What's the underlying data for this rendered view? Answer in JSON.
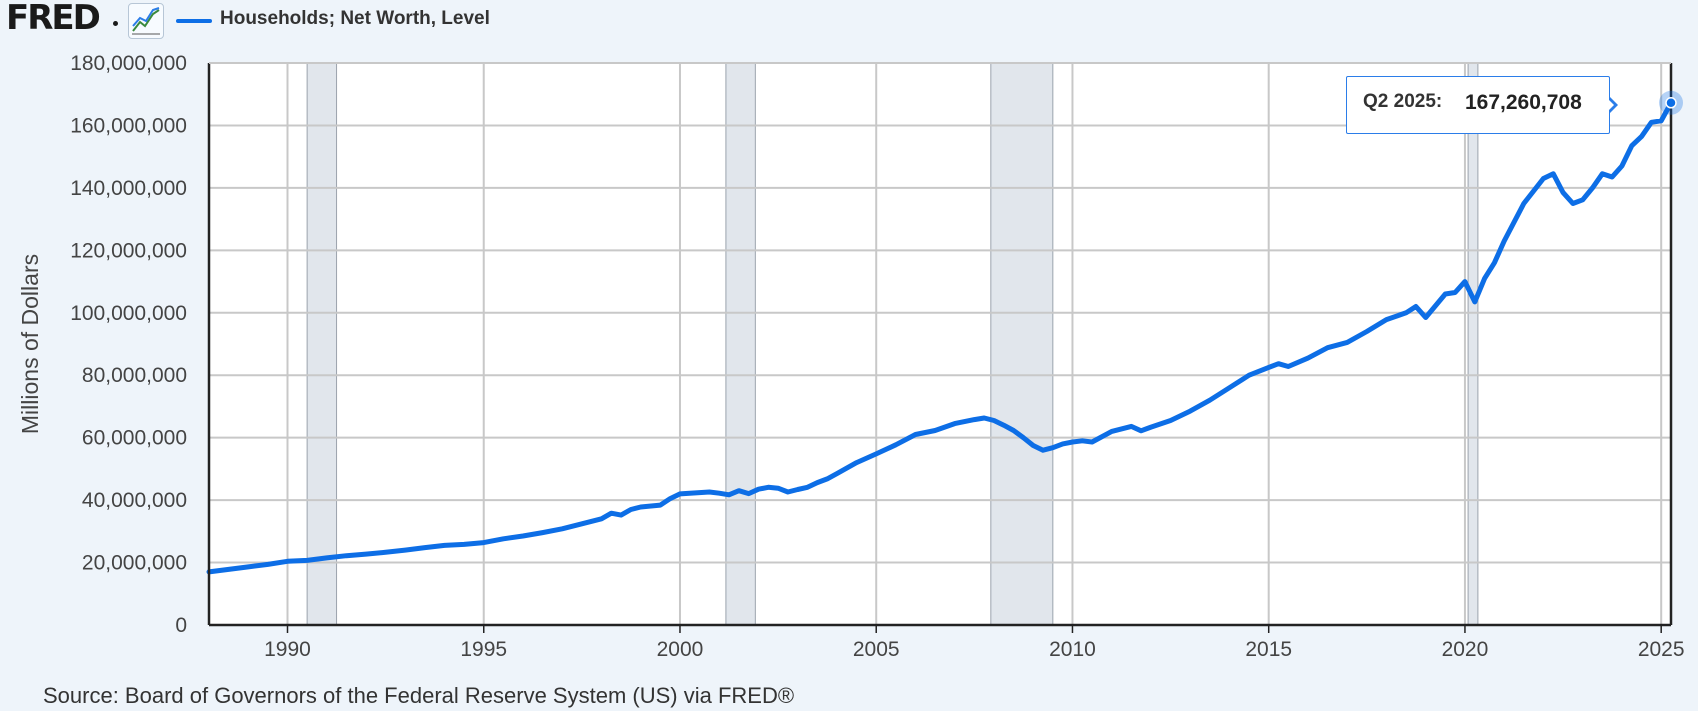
{
  "header": {
    "logo_text": "FRED",
    "chart_icon": "line-chart-icon",
    "series_label": "Households; Net Worth, Level",
    "series_color": "#0d6ee6"
  },
  "tooltip": {
    "date": "Q2 2025:",
    "value": "167,260,708"
  },
  "source": "Source: Board of Governors of the Federal Reserve System (US) via FRED®",
  "chart_data": {
    "type": "line",
    "title": "",
    "xlabel": "",
    "ylabel": "Millions of Dollars",
    "xlim": [
      1988.0,
      2025.25
    ],
    "ylim": [
      0,
      180000000
    ],
    "grid": true,
    "legend": "top-left",
    "x_ticks": [
      1990,
      1995,
      2000,
      2005,
      2010,
      2015,
      2020,
      2025
    ],
    "x_tick_labels": [
      "1990",
      "1995",
      "2000",
      "2005",
      "2010",
      "2015",
      "2020",
      "2025"
    ],
    "y_ticks": [
      0,
      20000000,
      40000000,
      60000000,
      80000000,
      100000000,
      120000000,
      140000000,
      160000000,
      180000000
    ],
    "y_tick_labels": [
      "0",
      "20,000,000",
      "40,000,000",
      "60,000,000",
      "80,000,000",
      "100,000,000",
      "120,000,000",
      "140,000,000",
      "160,000,000",
      "180,000,000"
    ],
    "recessions": [
      [
        1990.5,
        1991.25
      ],
      [
        2001.17,
        2001.92
      ],
      [
        2007.92,
        2009.5
      ],
      [
        2020.08,
        2020.33
      ]
    ],
    "series": [
      {
        "color": "#0d6ee6",
        "x": [
          1988.0,
          1988.5,
          1989.0,
          1989.5,
          1990.0,
          1990.5,
          1991.0,
          1991.5,
          1992.0,
          1992.5,
          1993.0,
          1993.5,
          1994.0,
          1994.5,
          1995.0,
          1995.5,
          1996.0,
          1996.5,
          1997.0,
          1997.5,
          1998.0,
          1998.25,
          1998.5,
          1998.75,
          1999.0,
          1999.5,
          1999.75,
          2000.0,
          2000.25,
          2000.75,
          2001.0,
          2001.25,
          2001.5,
          2001.75,
          2002.0,
          2002.25,
          2002.5,
          2002.75,
          2003.0,
          2003.25,
          2003.5,
          2003.75,
          2004.0,
          2004.5,
          2005.0,
          2005.5,
          2006.0,
          2006.5,
          2007.0,
          2007.5,
          2007.75,
          2008.0,
          2008.25,
          2008.5,
          2008.75,
          2009.0,
          2009.25,
          2009.5,
          2009.75,
          2010.0,
          2010.25,
          2010.5,
          2011.0,
          2011.25,
          2011.5,
          2011.75,
          2012.0,
          2012.5,
          2013.0,
          2013.5,
          2014.0,
          2014.5,
          2015.0,
          2015.25,
          2015.5,
          2016.0,
          2016.5,
          2017.0,
          2017.5,
          2018.0,
          2018.5,
          2018.75,
          2019.0,
          2019.5,
          2019.75,
          2020.0,
          2020.25,
          2020.5,
          2020.75,
          2021.0,
          2021.5,
          2021.75,
          2022.0,
          2022.25,
          2022.5,
          2022.75,
          2023.0,
          2023.25,
          2023.5,
          2023.75,
          2024.0,
          2024.25,
          2024.5,
          2024.75,
          2025.0,
          2025.25
        ],
        "y": [
          17000000,
          17800000,
          18600000,
          19400000,
          20400000,
          20700000,
          21500000,
          22200000,
          22700000,
          23300000,
          24000000,
          24800000,
          25500000,
          25800000,
          26400000,
          27600000,
          28500000,
          29600000,
          30800000,
          32400000,
          34000000,
          35800000,
          35200000,
          37000000,
          37800000,
          38400000,
          40500000,
          42000000,
          42200000,
          42600000,
          42200000,
          41700000,
          43000000,
          42100000,
          43500000,
          44100000,
          43800000,
          42600000,
          43400000,
          44100000,
          45600000,
          46800000,
          48500000,
          52000000,
          54800000,
          57700000,
          61000000,
          62300000,
          64500000,
          65800000,
          66300000,
          65500000,
          64000000,
          62300000,
          60000000,
          57500000,
          56000000,
          56800000,
          58000000,
          58600000,
          59000000,
          58600000,
          62000000,
          62800000,
          63600000,
          62200000,
          63400000,
          65500000,
          68500000,
          72000000,
          76000000,
          80000000,
          82500000,
          83700000,
          82800000,
          85500000,
          88800000,
          90500000,
          94000000,
          97800000,
          100000000,
          102000000,
          98500000,
          106000000,
          106500000,
          110000000,
          103500000,
          111000000,
          116000000,
          123000000,
          135000000,
          139000000,
          143000000,
          144500000,
          138500000,
          135000000,
          136200000,
          140000000,
          144500000,
          143500000,
          147000000,
          153500000,
          156500000,
          161000000,
          161500000,
          167260708
        ]
      }
    ]
  }
}
